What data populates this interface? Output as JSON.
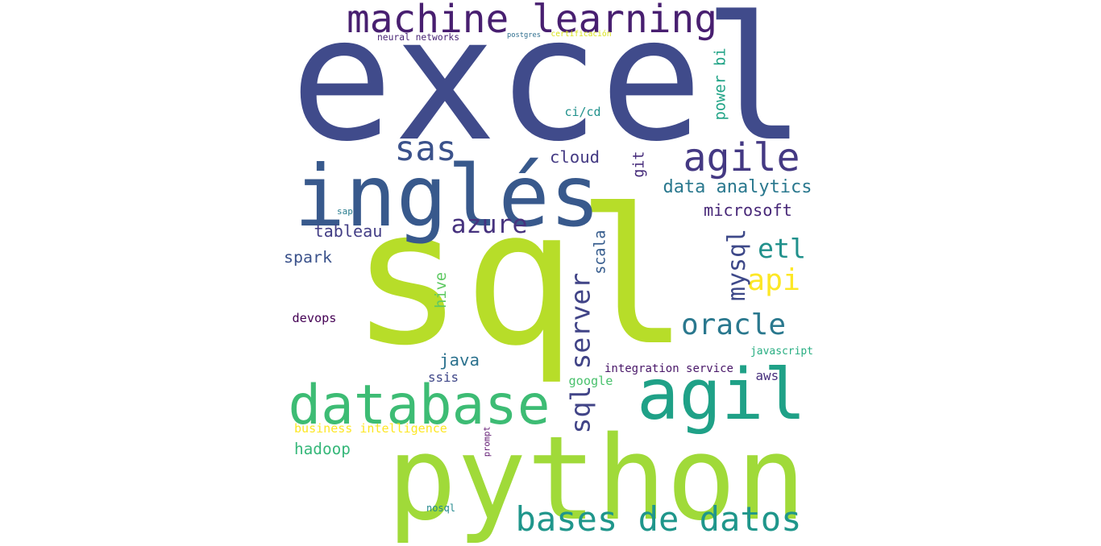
{
  "words": [
    {
      "id": "excel",
      "text": "excel",
      "color": "#404b8b"
    },
    {
      "id": "sql",
      "text": "sql",
      "color": "#b7dd29"
    },
    {
      "id": "python",
      "text": "python",
      "color": "#a0da39"
    },
    {
      "id": "ingles",
      "text": "inglés",
      "color": "#38598c"
    },
    {
      "id": "agil",
      "text": "agil",
      "color": "#1fa187"
    },
    {
      "id": "database",
      "text": "database",
      "color": "#3dbc74"
    },
    {
      "id": "machine-learning",
      "text": "machine learning",
      "color": "#481f70"
    },
    {
      "id": "bases-de-datos",
      "text": "bases de datos",
      "color": "#1f968b"
    },
    {
      "id": "agile",
      "text": "agile",
      "color": "#443983"
    },
    {
      "id": "sql-server",
      "text": "sql server",
      "color": "#414487"
    },
    {
      "id": "sas",
      "text": "sas",
      "color": "#3b528b"
    },
    {
      "id": "oracle",
      "text": "oracle",
      "color": "#2a788e"
    },
    {
      "id": "etl",
      "text": "etl",
      "color": "#21918c"
    },
    {
      "id": "api",
      "text": "api",
      "color": "#fde725"
    },
    {
      "id": "mysql",
      "text": "mysql",
      "color": "#3e4989"
    },
    {
      "id": "azure",
      "text": "azure",
      "color": "#46327e"
    },
    {
      "id": "data-analytics",
      "text": "data analytics",
      "color": "#2a788e"
    },
    {
      "id": "microsoft",
      "text": "microsoft",
      "color": "#482878"
    },
    {
      "id": "tableau",
      "text": "tableau",
      "color": "#433e85"
    },
    {
      "id": "spark",
      "text": "spark",
      "color": "#3b528b"
    },
    {
      "id": "scala",
      "text": "scala",
      "color": "#365c8d"
    },
    {
      "id": "cloud",
      "text": "cloud",
      "color": "#443a83"
    },
    {
      "id": "power-bi",
      "text": "power bi",
      "color": "#20a386"
    },
    {
      "id": "git",
      "text": "git",
      "color": "#472d7b"
    },
    {
      "id": "java",
      "text": "java",
      "color": "#2c728e"
    },
    {
      "id": "hive",
      "text": "hive",
      "color": "#5ec962"
    },
    {
      "id": "devops",
      "text": "devops",
      "color": "#440154"
    },
    {
      "id": "ssis",
      "text": "ssis",
      "color": "#3f4788"
    },
    {
      "id": "hadoop",
      "text": "hadoop",
      "color": "#35b779"
    },
    {
      "id": "business-intelligence",
      "text": "business intelligence",
      "color": "#fde725"
    },
    {
      "id": "integration-service",
      "text": "integration service",
      "color": "#481668"
    },
    {
      "id": "google",
      "text": "google",
      "color": "#4ac16d"
    },
    {
      "id": "aws",
      "text": "aws",
      "color": "#472f7d"
    },
    {
      "id": "javascript",
      "text": "javascript",
      "color": "#26ad81"
    },
    {
      "id": "ci-cd",
      "text": "ci/cd",
      "color": "#21918c"
    },
    {
      "id": "neural-networks",
      "text": "neural networks",
      "color": "#482475"
    },
    {
      "id": "postgres",
      "text": "postgres",
      "color": "#2e6e8e"
    },
    {
      "id": "certificacion",
      "text": "certificación",
      "color": "#d8e219"
    },
    {
      "id": "sap",
      "text": "sap",
      "color": "#287c8e"
    },
    {
      "id": "prompt",
      "text": "prompt",
      "color": "#5c126e"
    },
    {
      "id": "nosql",
      "text": "nosql",
      "color": "#23898e"
    }
  ]
}
